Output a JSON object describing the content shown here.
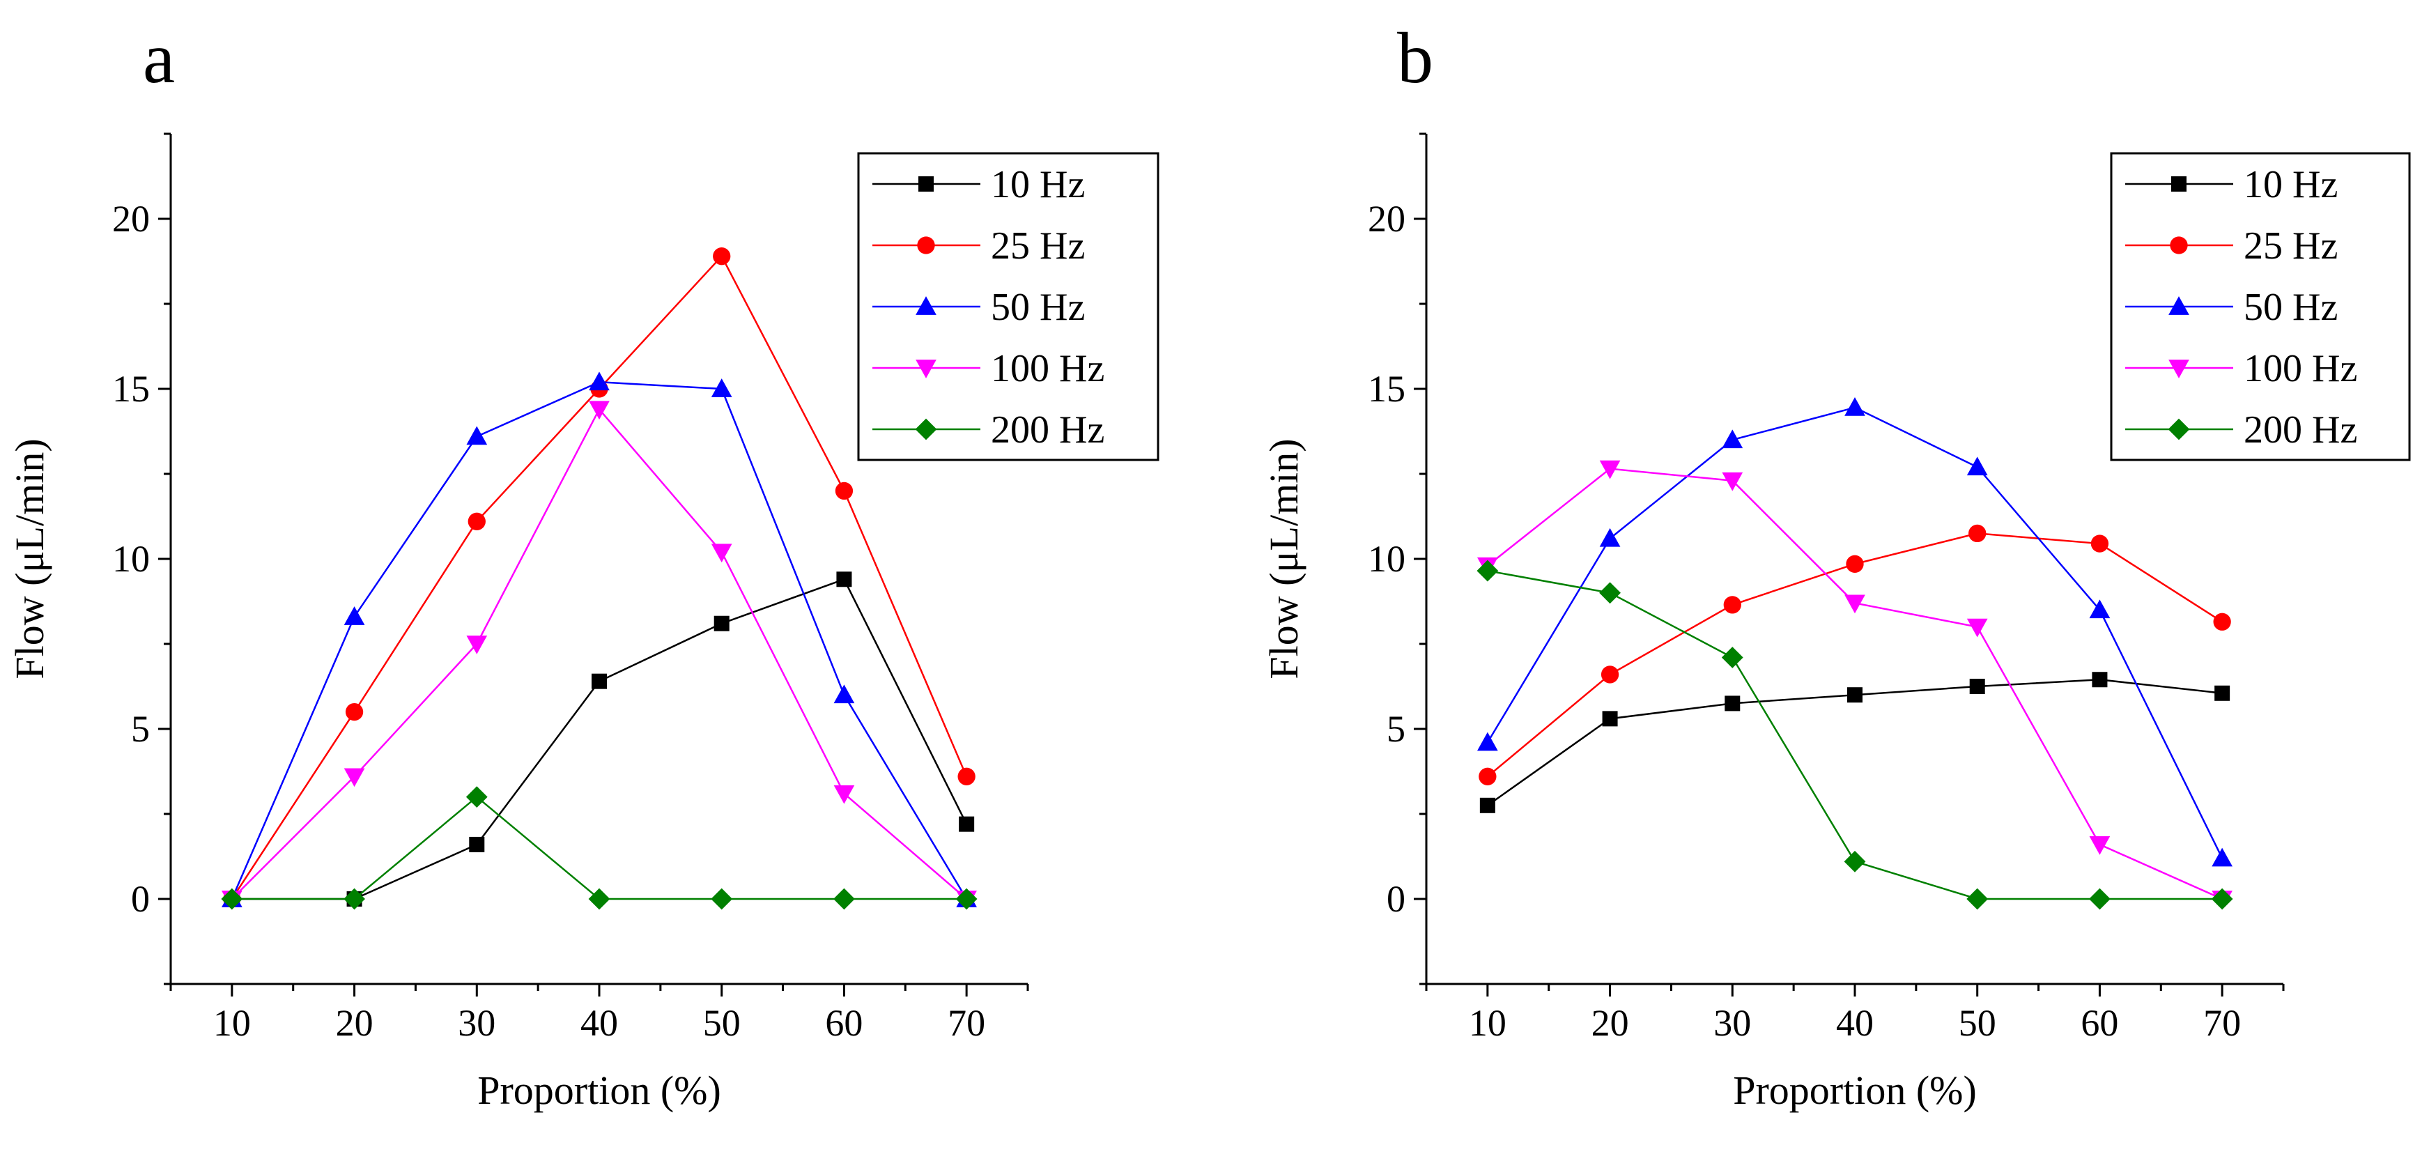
{
  "chart_data": [
    {
      "panel": "a",
      "type": "line",
      "xlabel": "Proportion (%)",
      "ylabel": "Flow (μL/min)",
      "x": [
        10,
        20,
        30,
        40,
        50,
        60,
        70
      ],
      "xlim": [
        5,
        75
      ],
      "ylim": [
        -2.5,
        22.5
      ],
      "xticks": [
        10,
        20,
        30,
        40,
        50,
        60,
        70
      ],
      "yticks": [
        0,
        5,
        10,
        15,
        20
      ],
      "legend_position": "top-right",
      "series": [
        {
          "name": "10 Hz",
          "color": "#000000",
          "marker": "square",
          "values": [
            0,
            0,
            1.6,
            6.4,
            8.1,
            9.4,
            2.2
          ]
        },
        {
          "name": "25 Hz",
          "color": "#ff0000",
          "marker": "circle",
          "values": [
            0,
            5.5,
            11.1,
            15.0,
            18.9,
            12.0,
            3.6
          ]
        },
        {
          "name": "50 Hz",
          "color": "#0000ff",
          "marker": "triangle-up",
          "values": [
            0,
            8.3,
            13.6,
            15.2,
            15.0,
            6.0,
            0
          ]
        },
        {
          "name": "100 Hz",
          "color": "#ff00ff",
          "marker": "triangle-down",
          "values": [
            0,
            3.6,
            7.5,
            14.4,
            10.2,
            3.1,
            0
          ]
        },
        {
          "name": "200 Hz",
          "color": "#008000",
          "marker": "diamond",
          "values": [
            0,
            0,
            3.0,
            0,
            0,
            0,
            0
          ]
        }
      ]
    },
    {
      "panel": "b",
      "type": "line",
      "xlabel": "Proportion (%)",
      "ylabel": "Flow (μL/min)",
      "x": [
        10,
        20,
        30,
        40,
        50,
        60,
        70
      ],
      "xlim": [
        5,
        75
      ],
      "ylim": [
        -2.5,
        22.5
      ],
      "xticks": [
        10,
        20,
        30,
        40,
        50,
        60,
        70
      ],
      "yticks": [
        0,
        5,
        10,
        15,
        20
      ],
      "legend_position": "top-right",
      "series": [
        {
          "name": "10 Hz",
          "color": "#000000",
          "marker": "square",
          "values": [
            2.75,
            5.3,
            5.75,
            6.0,
            6.25,
            6.45,
            6.05
          ]
        },
        {
          "name": "25 Hz",
          "color": "#ff0000",
          "marker": "circle",
          "values": [
            3.6,
            6.6,
            8.65,
            9.85,
            10.75,
            10.45,
            8.15
          ]
        },
        {
          "name": "50 Hz",
          "color": "#0000ff",
          "marker": "triangle-up",
          "values": [
            4.6,
            10.6,
            13.5,
            14.45,
            12.7,
            8.5,
            1.2
          ]
        },
        {
          "name": "100 Hz",
          "color": "#ff00ff",
          "marker": "triangle-down",
          "values": [
            9.8,
            12.65,
            12.3,
            8.7,
            8.0,
            1.6,
            0
          ]
        },
        {
          "name": "200 Hz",
          "color": "#008000",
          "marker": "diamond",
          "values": [
            9.65,
            9.0,
            7.1,
            1.1,
            0,
            0,
            0
          ]
        }
      ]
    }
  ]
}
